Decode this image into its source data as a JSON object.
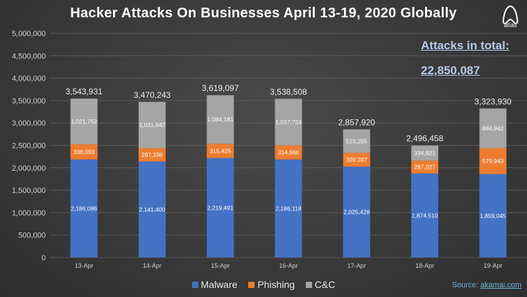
{
  "title": "Hacker Attacks On Businesses April 13-19, 2020 Globally",
  "logo": {
    "icon": "atlas-logo-icon",
    "text": "atlas"
  },
  "totals": {
    "label": "Attacks in total:",
    "value": "22,850,087"
  },
  "source": {
    "prefix": "Source: ",
    "link": "akamai.com"
  },
  "colors": {
    "malware": "#4472c4",
    "phishing": "#ed7d31",
    "cnc": "#a5a5a5"
  },
  "chart_data": {
    "type": "bar",
    "stacked": true,
    "title": "Hacker Attacks On Businesses April 13-19, 2020 Globally",
    "xlabel": "",
    "ylabel": "",
    "categories": [
      "13-Apr",
      "14-Apr",
      "15-Apr",
      "16-Apr",
      "17-Apr",
      "18-Apr",
      "19-Apr"
    ],
    "series": [
      {
        "name": "Malware",
        "values": [
          2186086,
          2141400,
          2219491,
          2186118,
          2025428,
          1874510,
          1859045
        ],
        "labels": [
          "2,186,086",
          "2,141,400",
          "2,219,491",
          "2,186,118",
          "2,025,428",
          "1,874,510",
          "1,859,045"
        ]
      },
      {
        "name": "Phishing",
        "values": [
          336093,
          297196,
          315425,
          314666,
          309287,
          287027,
          579943
        ],
        "labels": [
          "336,093",
          "297,196",
          "315,425",
          "314,666",
          "309,287",
          "287,027",
          "579,943"
        ]
      },
      {
        "name": "C&C",
        "values": [
          1021752,
          1031647,
          1084181,
          1037724,
          523205,
          334921,
          884942
        ],
        "labels": [
          "1,021,752",
          "1,031,647",
          "1,084,181",
          "1,037,724",
          "523,205",
          "334,921",
          "884,942"
        ]
      }
    ],
    "totals": [
      3543931,
      3470243,
      3619097,
      3538508,
      2857920,
      2496458,
      3323930
    ],
    "total_labels": [
      "3,543,931",
      "3,470,243",
      "3,619,097",
      "3,538,508",
      "2,857,920",
      "2,496,458",
      "3,323,930"
    ],
    "ylim": [
      0,
      5000000
    ],
    "yticks": [
      0,
      500000,
      1000000,
      1500000,
      2000000,
      2500000,
      3000000,
      3500000,
      4000000,
      4500000,
      5000000
    ],
    "ytick_labels": [
      "0",
      "500,000",
      "1,000,000",
      "1,500,000",
      "2,000,000",
      "2,500,000",
      "3,000,000",
      "3,500,000",
      "4,000,000",
      "4,500,000",
      "5,000,000"
    ],
    "grid": true,
    "legend": "bottom"
  }
}
